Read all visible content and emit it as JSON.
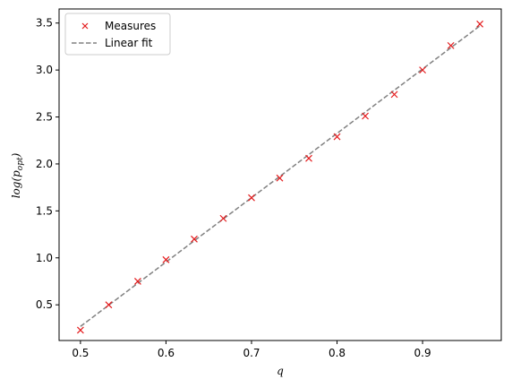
{
  "chart_data": {
    "type": "scatter",
    "title": "",
    "xlabel": "q",
    "ylabel_base": "log(p",
    "ylabel_sub": "opt",
    "ylabel_close": ")",
    "xlim": [
      0.475,
      0.992
    ],
    "ylim": [
      0.12,
      3.65
    ],
    "xticks": [
      "0.5",
      "0.6",
      "0.7",
      "0.8",
      "0.9"
    ],
    "yticks": [
      "0.5",
      "1.0",
      "1.5",
      "2.0",
      "2.5",
      "3.0",
      "3.5"
    ],
    "grid": false,
    "legend_position": "top-left",
    "series": [
      {
        "name": "Measures",
        "marker": "x",
        "color": "#e41a1c",
        "x": [
          0.5,
          0.533,
          0.567,
          0.6,
          0.633,
          0.667,
          0.7,
          0.733,
          0.767,
          0.8,
          0.833,
          0.867,
          0.9,
          0.933,
          0.967
        ],
        "y": [
          0.23,
          0.5,
          0.75,
          0.98,
          1.2,
          1.42,
          1.64,
          1.85,
          2.06,
          2.29,
          2.51,
          2.74,
          3.0,
          3.26,
          3.49
        ]
      },
      {
        "name": "Linear fit",
        "style": "dashed",
        "color": "#808080",
        "x": [
          0.5,
          0.967
        ],
        "y": [
          0.27,
          3.47
        ]
      }
    ]
  }
}
